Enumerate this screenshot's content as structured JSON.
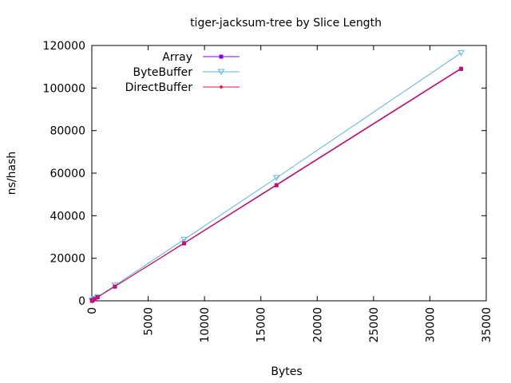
{
  "chart_data": {
    "type": "line",
    "title": "tiger-jacksum-tree by Slice Length",
    "xlabel": "Bytes",
    "ylabel": "ns/hash",
    "xlim": [
      0,
      35000
    ],
    "ylim": [
      0,
      120000
    ],
    "x_ticks": [
      "0",
      "5000",
      "10000",
      "15000",
      "20000",
      "25000",
      "30000",
      "35000"
    ],
    "y_ticks": [
      "0",
      "20000",
      "40000",
      "60000",
      "80000",
      "100000",
      "120000"
    ],
    "legend_position": "top-left",
    "grid": false,
    "series": [
      {
        "name": "Array",
        "color": "#9400d3",
        "marker": "square",
        "x": [
          16,
          64,
          256,
          512,
          2048,
          8192,
          16384,
          32768
        ],
        "y": [
          55,
          210,
          840,
          1680,
          6700,
          27000,
          54300,
          109000
        ]
      },
      {
        "name": "ByteBuffer",
        "color": "#56b4e9",
        "marker": "triangle-down",
        "x": [
          16,
          64,
          256,
          512,
          2048,
          8192,
          16384,
          32768
        ],
        "y": [
          60,
          230,
          900,
          1800,
          7200,
          28800,
          57800,
          116500
        ]
      },
      {
        "name": "DirectBuffer",
        "color": "#dc143c",
        "marker": "diamond",
        "x": [
          16,
          64,
          256,
          512,
          2048,
          8192,
          16384,
          32768
        ],
        "y": [
          55,
          215,
          850,
          1700,
          6800,
          27200,
          54600,
          109300
        ]
      }
    ]
  }
}
